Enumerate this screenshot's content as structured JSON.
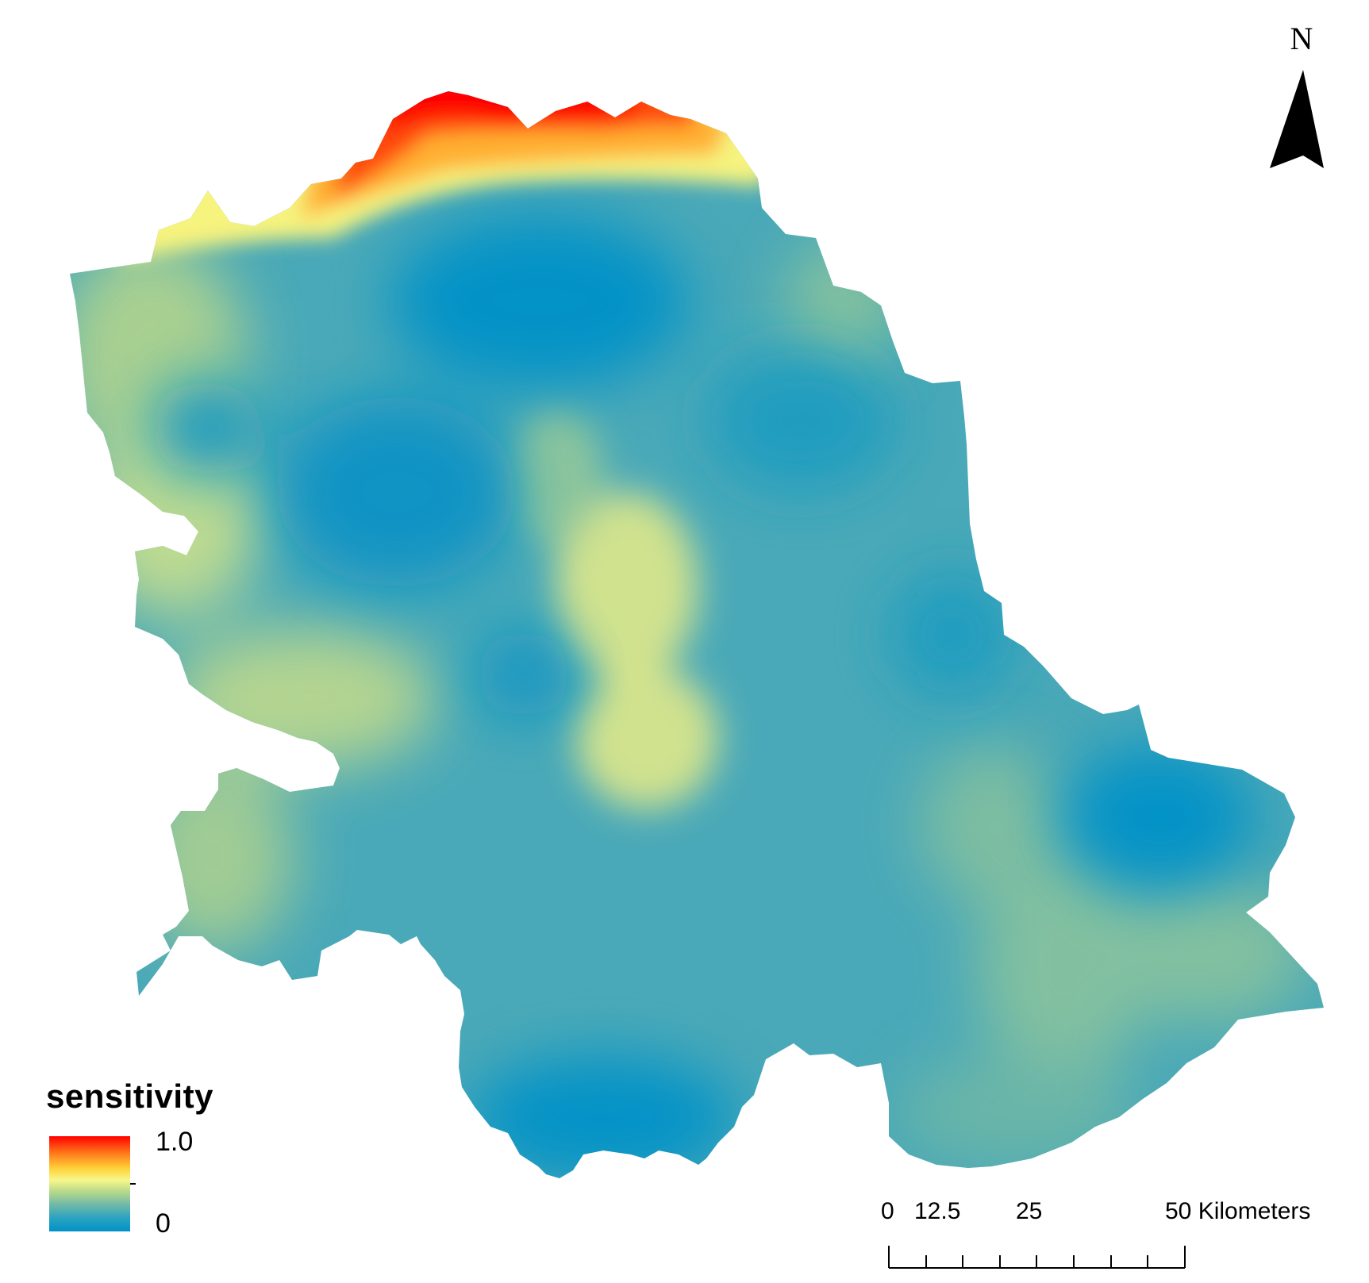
{
  "north_arrow": {
    "label": "N",
    "icon": "north-arrow-icon"
  },
  "legend": {
    "title": "sensitivity",
    "max_label": "1.0",
    "min_label": "0",
    "colors": [
      "#ff0000",
      "#ff7a1a",
      "#ffd23a",
      "#f7f78a",
      "#b9d98a",
      "#6fb9a8",
      "#2aa3c0",
      "#0092c8"
    ]
  },
  "scale_bar": {
    "labels": [
      "0",
      "12.5",
      "25",
      "50 Kilometers"
    ]
  },
  "map": {
    "base_color": "#4aa9b8",
    "high_color": "#ff0000",
    "mid_color": "#f7f78a",
    "low_color": "#0092c8"
  }
}
